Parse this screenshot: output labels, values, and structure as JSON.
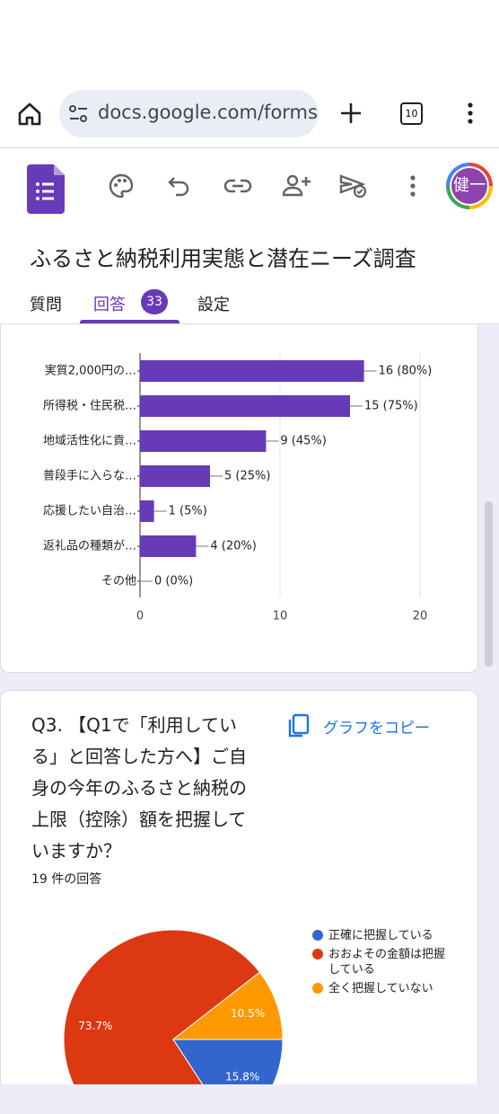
{
  "browser": {
    "url": "docs.google.com/forms/",
    "tab_count": "10"
  },
  "app": {
    "avatar": "健一",
    "title": "ふるさと納税利用実態と潜在ニーズ調査",
    "tabs": [
      "質問",
      "回答",
      "設定"
    ],
    "response_badge": "33"
  },
  "card": {
    "copy_button": "グラフをコピー"
  },
  "chart_data": [
    {
      "type": "bar",
      "orientation": "horizontal",
      "categories": [
        "実質2,000円の…",
        "所得税・住民税…",
        "地域活性化に貢…",
        "普段手に入らな…",
        "応援したい自治…",
        "返礼品の種類が…",
        "その他"
      ],
      "values": [
        16,
        15,
        9,
        5,
        1,
        4,
        0
      ],
      "value_labels": [
        "16 (80%)",
        "15 (75%)",
        "9 (45%)",
        "5 (25%)",
        "1 (5%)",
        "4 (20%)",
        "0 (0%)"
      ],
      "color": "#673ab7",
      "xlim": [
        0,
        20
      ],
      "xticks": [
        0,
        10,
        20
      ],
      "grid": true
    },
    {
      "type": "pie",
      "title": "Q3. 【Q1で「利用している」と回答した方へ】ご自身の今年のふるさと納税の上限（控除）額を把握していますか？",
      "subtitle": "19 件の回答",
      "categories": [
        "正確に把握している",
        "おおよその金額は把握している",
        "全く把握していない"
      ],
      "values": [
        15.8,
        73.7,
        10.5
      ],
      "value_labels": [
        "15.8%",
        "73.7%",
        "10.5%"
      ],
      "colors": [
        "#3366cc",
        "#dc3912",
        "#ff9900"
      ],
      "legend": "right"
    }
  ]
}
